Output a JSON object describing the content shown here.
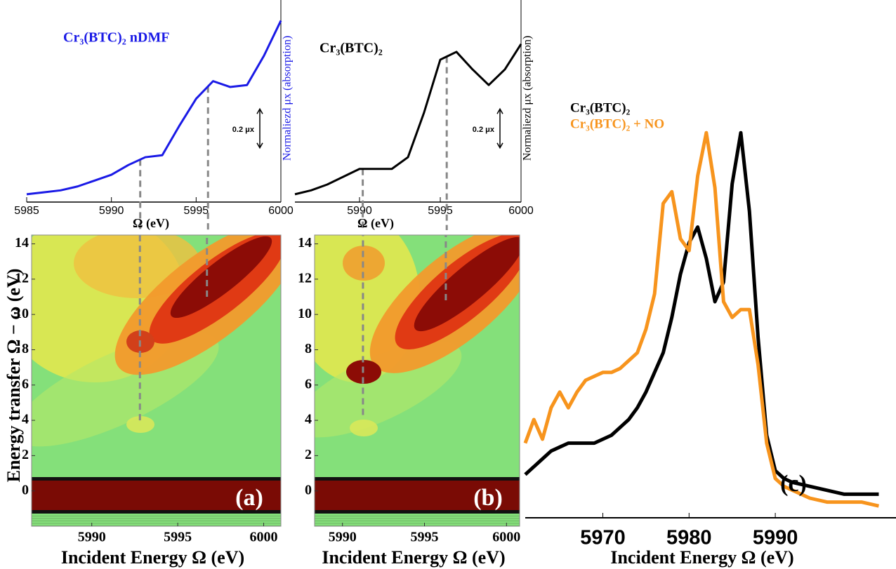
{
  "chart_data": [
    {
      "type": "line",
      "title": "Cr₃(BTC)₂ nDMF",
      "color": "#1a1ae6",
      "x": [
        5985,
        5986,
        5987,
        5988,
        5989,
        5990,
        5991,
        5992,
        5993,
        5994,
        5995,
        5996,
        5997,
        5998,
        5999,
        6000
      ],
      "values": [
        0.04,
        0.05,
        0.06,
        0.08,
        0.11,
        0.14,
        0.19,
        0.23,
        0.24,
        0.39,
        0.53,
        0.62,
        0.59,
        0.6,
        0.75,
        0.93
      ],
      "xlim": [
        5985,
        6000
      ],
      "ylim": [
        0,
        1
      ],
      "xticks": [
        5985,
        5990,
        5995,
        6000
      ],
      "x_label": "Ω (eV)",
      "y_label": "Normaliezd μx (absorption)",
      "scale_bar": {
        "value": 0.2,
        "label": "0.2 μx"
      },
      "markers": [
        5991.7,
        5995.7
      ]
    },
    {
      "type": "line",
      "title": "Cr₃(BTC)₂",
      "color": "#000000",
      "x": [
        5986,
        5987,
        5988,
        5989,
        5990,
        5991,
        5992,
        5993,
        5994,
        5995,
        5996,
        5997,
        5998,
        5999,
        6000
      ],
      "values": [
        0.04,
        0.06,
        0.09,
        0.13,
        0.17,
        0.17,
        0.17,
        0.23,
        0.46,
        0.73,
        0.77,
        0.68,
        0.6,
        0.68,
        0.81
      ],
      "xlim": [
        5986,
        6000
      ],
      "ylim": [
        0,
        1
      ],
      "xticks": [
        5990,
        5995,
        6000
      ],
      "x_label": "Ω (eV)",
      "y_label": "Normaliezd μx (absorption)",
      "scale_bar": {
        "value": 0.2,
        "label": "0.2 μx"
      },
      "markers": [
        5990.2,
        5995.4
      ]
    },
    {
      "type": "contour",
      "panel_label": "(a)",
      "x_label": "Incident Energy Ω (eV)",
      "y_label": "Energy transfer Ω − ω (eV)",
      "xlim": [
        5986.5,
        6001
      ],
      "ylim": [
        -2,
        14.5
      ],
      "xticks": [
        5990,
        5995,
        6000
      ],
      "yticks": [
        0,
        2,
        4,
        6,
        8,
        10,
        12,
        14
      ],
      "markers": [
        {
          "x": 5992.8,
          "y": [
            4,
            14.5
          ]
        },
        {
          "x": 5996.7,
          "y": [
            11,
            14.5
          ]
        }
      ]
    },
    {
      "type": "contour",
      "panel_label": "(b)",
      "x_label": "Incident Energy Ω (eV)",
      "xlim": [
        5988.3,
        6000.8
      ],
      "ylim": [
        -2,
        14.5
      ],
      "xticks": [
        5990,
        5995,
        6000
      ],
      "yticks": [
        0,
        2,
        4,
        6,
        8,
        10,
        12,
        14
      ],
      "markers": [
        {
          "x": 5991.25,
          "y": [
            4.3,
            14.5
          ]
        },
        {
          "x": 5996.3,
          "y": [
            10.8,
            14.5
          ]
        }
      ]
    },
    {
      "type": "line",
      "panel_label": "(c)",
      "x_label": "Incident Energy Ω (eV)",
      "x": [
        5961,
        5962,
        5963,
        5964,
        5965,
        5966,
        5967,
        5968,
        5969,
        5970,
        5971,
        5972,
        5973,
        5974,
        5975,
        5976,
        5977,
        5978,
        5979,
        5980,
        5981,
        5982,
        5983,
        5984,
        5985,
        5986,
        5987,
        5988,
        5989,
        5990,
        5991,
        5992,
        5994,
        5996,
        5998,
        6000,
        6002
      ],
      "series": [
        {
          "name": "Cr₃(BTC)₂",
          "color": "#000000",
          "values": [
            0.11,
            0.13,
            0.15,
            0.17,
            0.18,
            0.19,
            0.19,
            0.19,
            0.19,
            0.2,
            0.21,
            0.23,
            0.25,
            0.28,
            0.32,
            0.37,
            0.42,
            0.51,
            0.62,
            0.7,
            0.74,
            0.66,
            0.55,
            0.6,
            0.85,
            0.98,
            0.78,
            0.46,
            0.21,
            0.12,
            0.1,
            0.09,
            0.08,
            0.07,
            0.06,
            0.06,
            0.06
          ]
        },
        {
          "name": "Cr₃(BTC)₂ + NO",
          "color": "#f7941d",
          "values": [
            0.19,
            0.25,
            0.2,
            0.28,
            0.32,
            0.28,
            0.32,
            0.35,
            0.36,
            0.37,
            0.37,
            0.38,
            0.4,
            0.42,
            0.48,
            0.57,
            0.8,
            0.83,
            0.71,
            0.68,
            0.87,
            0.98,
            0.84,
            0.55,
            0.51,
            0.53,
            0.53,
            0.39,
            0.19,
            0.1,
            0.08,
            0.07,
            0.05,
            0.04,
            0.04,
            0.04,
            0.03
          ]
        }
      ],
      "xlim": [
        5961,
        6004
      ],
      "ylim": [
        0,
        1
      ],
      "xticks": [
        5970,
        5980,
        5990
      ]
    }
  ]
}
